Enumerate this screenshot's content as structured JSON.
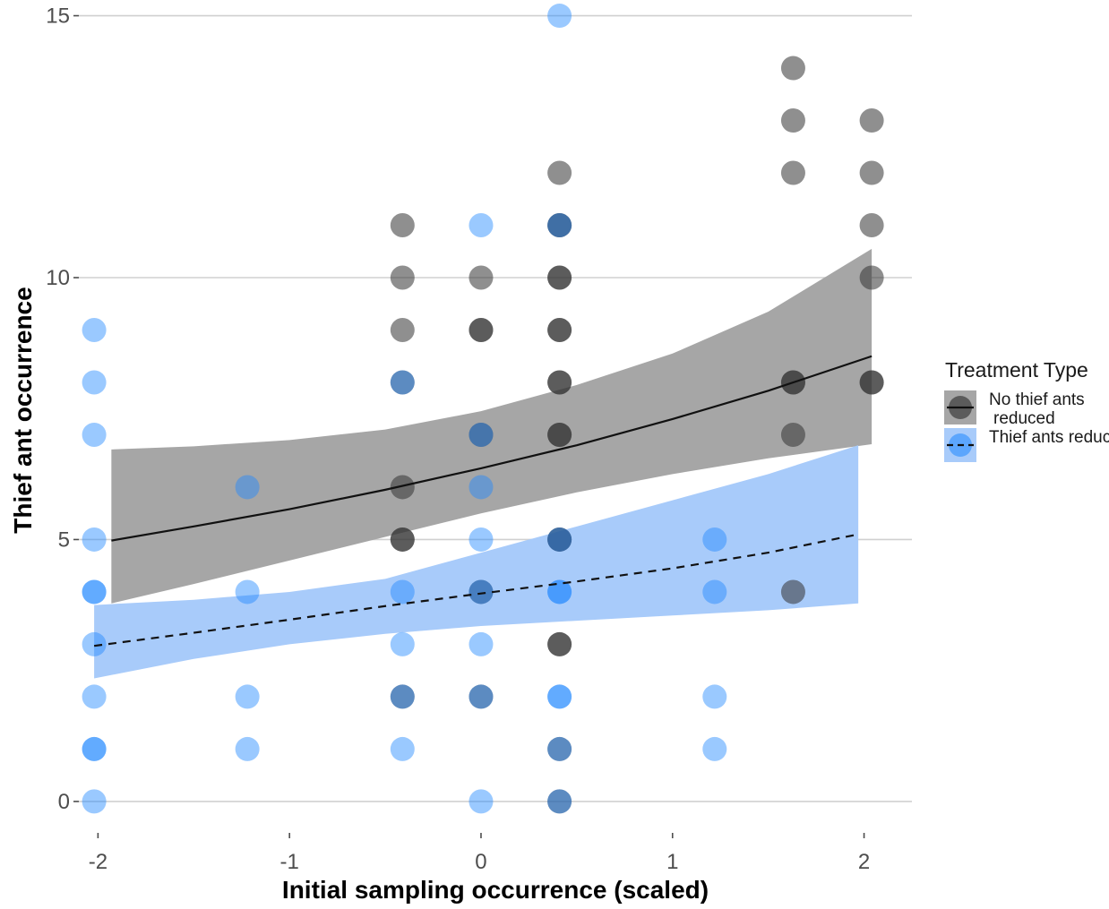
{
  "chart_data": {
    "type": "scatter",
    "xlabel": "Initial sampling occurrence (scaled)",
    "ylabel": "Thief ant occurrence",
    "xlim": [
      -2.1,
      2.25
    ],
    "ylim": [
      -0.6,
      15.3
    ],
    "x_ticks": [
      -2,
      -1,
      0,
      1,
      2
    ],
    "x_tick_labels": [
      "-2",
      "-1",
      "0",
      "1",
      "2"
    ],
    "y_ticks": [
      0,
      5,
      10,
      15
    ],
    "y_tick_labels": [
      "0",
      "5",
      "10",
      "15"
    ],
    "grid": "horizontal major only",
    "legend": {
      "title": "Treatment Type",
      "position": "right",
      "entries": [
        "No thief ants reduced",
        "Thief ants reduced"
      ]
    },
    "colors": {
      "no_reduction": "#333333",
      "no_reduction_ribbon": "#a6a6a6",
      "reduced": "#1e88ff",
      "reduced_ribbon": "#a8cbfa",
      "grid": "#d0d0d0"
    },
    "series": [
      {
        "name": "No thief ants reduced",
        "style": "solid",
        "points": [
          [
            -0.41,
            11
          ],
          [
            -0.41,
            10
          ],
          [
            -0.41,
            9
          ],
          [
            -0.41,
            8
          ],
          [
            -0.41,
            6
          ],
          [
            -0.41,
            5
          ],
          [
            -0.41,
            5
          ],
          [
            -0.41,
            2
          ],
          [
            0.0,
            10
          ],
          [
            0.0,
            9
          ],
          [
            0.0,
            9
          ],
          [
            0.0,
            7
          ],
          [
            0.0,
            4
          ],
          [
            0.0,
            2
          ],
          [
            0.41,
            12
          ],
          [
            0.41,
            11
          ],
          [
            0.41,
            11
          ],
          [
            0.41,
            10
          ],
          [
            0.41,
            10
          ],
          [
            0.41,
            9
          ],
          [
            0.41,
            9
          ],
          [
            0.41,
            8
          ],
          [
            0.41,
            8
          ],
          [
            0.41,
            7
          ],
          [
            0.41,
            7
          ],
          [
            0.41,
            5
          ],
          [
            0.41,
            5
          ],
          [
            0.41,
            3
          ],
          [
            0.41,
            3
          ],
          [
            0.41,
            1
          ],
          [
            0.41,
            0
          ],
          [
            1.63,
            14
          ],
          [
            1.63,
            13
          ],
          [
            1.63,
            12
          ],
          [
            1.63,
            8
          ],
          [
            1.63,
            8
          ],
          [
            1.63,
            7
          ],
          [
            1.63,
            4
          ],
          [
            2.04,
            13
          ],
          [
            2.04,
            12
          ],
          [
            2.04,
            11
          ],
          [
            2.04,
            10
          ],
          [
            2.04,
            8
          ],
          [
            2.04,
            8
          ]
        ],
        "fit_x": [
          -1.93,
          -1.5,
          -1.0,
          -0.5,
          0.0,
          0.5,
          1.0,
          1.5,
          2.04
        ],
        "fit_y": [
          4.98,
          5.25,
          5.58,
          5.95,
          6.36,
          6.8,
          7.3,
          7.84,
          8.5
        ],
        "ci_lower": [
          3.78,
          4.15,
          4.6,
          5.05,
          5.5,
          5.9,
          6.25,
          6.55,
          6.82
        ],
        "ci_upper": [
          6.72,
          6.78,
          6.9,
          7.1,
          7.45,
          7.95,
          8.55,
          9.35,
          10.55
        ]
      },
      {
        "name": "Thief ants reduced",
        "style": "dashed",
        "points": [
          [
            -2.02,
            9
          ],
          [
            -2.02,
            8
          ],
          [
            -2.02,
            7
          ],
          [
            -2.02,
            5
          ],
          [
            -2.02,
            4
          ],
          [
            -2.02,
            4
          ],
          [
            -2.02,
            3
          ],
          [
            -2.02,
            2
          ],
          [
            -2.02,
            1
          ],
          [
            -2.02,
            1
          ],
          [
            -2.02,
            0
          ],
          [
            -1.22,
            6
          ],
          [
            -1.22,
            4
          ],
          [
            -1.22,
            2
          ],
          [
            -1.22,
            1
          ],
          [
            -0.41,
            8
          ],
          [
            -0.41,
            4
          ],
          [
            -0.41,
            3
          ],
          [
            -0.41,
            2
          ],
          [
            -0.41,
            1
          ],
          [
            0.0,
            11
          ],
          [
            0.0,
            7
          ],
          [
            0.0,
            6
          ],
          [
            0.0,
            5
          ],
          [
            0.0,
            4
          ],
          [
            0.0,
            3
          ],
          [
            0.0,
            2
          ],
          [
            0.0,
            0
          ],
          [
            0.41,
            15
          ],
          [
            0.41,
            11
          ],
          [
            0.41,
            5
          ],
          [
            0.41,
            4
          ],
          [
            0.41,
            4
          ],
          [
            0.41,
            2
          ],
          [
            0.41,
            2
          ],
          [
            0.41,
            1
          ],
          [
            0.41,
            0
          ],
          [
            1.22,
            5
          ],
          [
            1.22,
            4
          ],
          [
            1.22,
            2
          ],
          [
            1.22,
            1
          ]
        ],
        "fit_x": [
          -2.02,
          -1.5,
          -1.0,
          -0.5,
          0.0,
          0.5,
          1.0,
          1.5,
          1.97
        ],
        "fit_y": [
          2.97,
          3.22,
          3.47,
          3.73,
          3.97,
          4.2,
          4.45,
          4.75,
          5.1
        ],
        "ci_lower": [
          2.35,
          2.72,
          3.0,
          3.2,
          3.35,
          3.45,
          3.55,
          3.65,
          3.78
        ],
        "ci_upper": [
          3.75,
          3.85,
          4.0,
          4.25,
          4.75,
          5.25,
          5.75,
          6.25,
          6.8
        ]
      }
    ]
  }
}
